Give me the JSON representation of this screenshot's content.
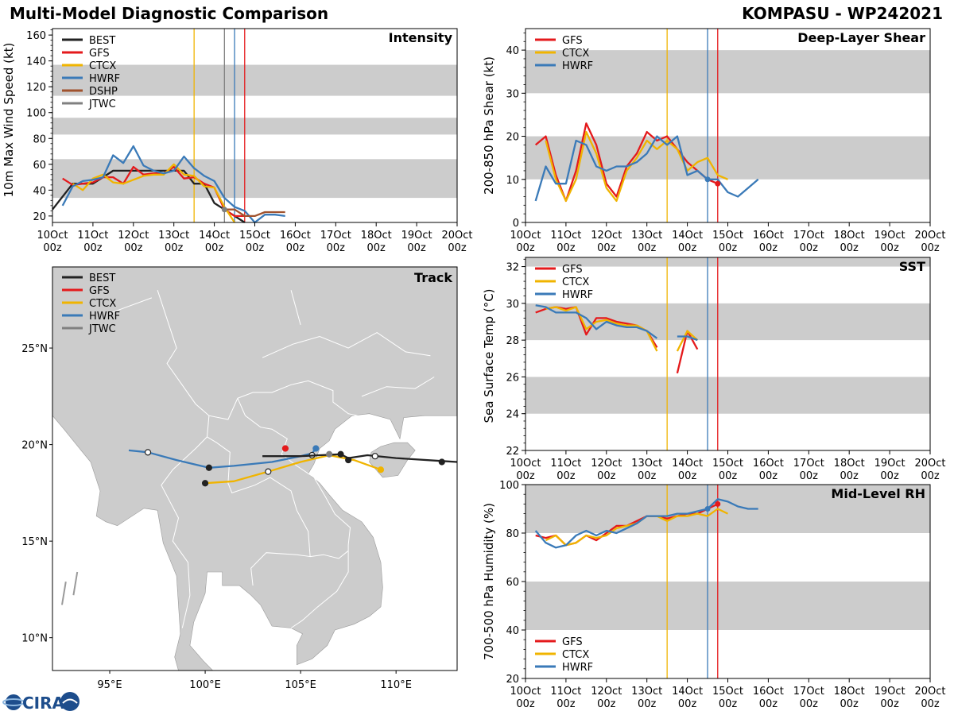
{
  "header": {
    "left_title": "Multi-Model Diagnostic Comparison",
    "right_title": "KOMPASU - WP242021"
  },
  "logo": {
    "text": "CIRA"
  },
  "colors": {
    "BEST": "#222222",
    "GFS": "#e41a1c",
    "CTCX": "#f0b400",
    "HWRF": "#3a7ab8",
    "DSHP": "#a0522d",
    "JTWC": "#808080",
    "band": "#cccccc",
    "land": "#cccccc",
    "border": "#ffffff"
  },
  "time_axis": {
    "ticks": [
      0,
      1,
      2,
      3,
      4,
      5,
      6,
      7,
      8,
      9,
      10
    ],
    "labels_top": [
      "10Oct",
      "11Oct",
      "12Oct",
      "13Oct",
      "14Oct",
      "15Oct",
      "16Oct",
      "17Oct",
      "18Oct",
      "19Oct",
      "20Oct"
    ],
    "labels_bottom": [
      "00z",
      "00z",
      "00z",
      "00z",
      "00z",
      "00z",
      "00z",
      "00z",
      "00z",
      "00z",
      "00z"
    ],
    "vlines": [
      {
        "model": "CTCX",
        "t": 3.5
      },
      {
        "model": "JTWC",
        "t": 4.25
      },
      {
        "model": "HWRF",
        "t": 4.5
      },
      {
        "model": "GFS",
        "t": 4.75
      }
    ]
  },
  "chart_data": [
    {
      "id": "intensity",
      "type": "line",
      "title": "Intensity",
      "ylabel": "10m Max Wind Speed (kt)",
      "ylim": [
        15,
        165
      ],
      "yticks": [
        20,
        40,
        60,
        80,
        100,
        120,
        140,
        160
      ],
      "bands": [
        [
          34,
          64
        ],
        [
          83,
          96
        ],
        [
          113,
          137
        ]
      ],
      "legend": [
        "BEST",
        "GFS",
        "CTCX",
        "HWRF",
        "DSHP",
        "JTWC"
      ],
      "series": [
        {
          "name": "BEST",
          "x": [
            0,
            0.5,
            1,
            1.25,
            1.5,
            1.75,
            2,
            2.25,
            2.5,
            2.75,
            3,
            3.25,
            3.5,
            3.75,
            4,
            4.25,
            4.5,
            4.75
          ],
          "y": [
            25,
            45,
            45,
            50,
            55,
            55,
            55,
            55,
            55,
            55,
            55,
            55,
            45,
            45,
            30,
            25,
            20,
            15
          ]
        },
        {
          "name": "GFS",
          "x": [
            0.25,
            0.5,
            0.75,
            1,
            1.25,
            1.5,
            1.75,
            2,
            2.25,
            2.5,
            2.75,
            3,
            3.25,
            3.5,
            3.75,
            4,
            4.25,
            4.5,
            4.75
          ],
          "y": [
            49,
            44,
            45,
            46,
            50,
            50,
            45,
            58,
            52,
            53,
            53,
            58,
            49,
            50,
            45,
            42,
            25,
            20,
            20
          ]
        },
        {
          "name": "CTCX",
          "x": [
            0.5,
            0.75,
            1,
            1.25,
            1.5,
            1.75,
            2,
            2.25,
            2.5,
            2.75,
            3,
            3.25,
            3.5,
            3.75,
            4,
            4.25,
            4.5
          ],
          "y": [
            45,
            40,
            49,
            52,
            46,
            45,
            48,
            51,
            52,
            52,
            60,
            52,
            51,
            43,
            42,
            27,
            15
          ]
        },
        {
          "name": "HWRF",
          "x": [
            0.25,
            0.5,
            0.75,
            1,
            1.25,
            1.5,
            1.75,
            2,
            2.25,
            2.5,
            2.75,
            3,
            3.25,
            3.5,
            3.75,
            4,
            4.25,
            4.5,
            4.75,
            5,
            5.25,
            5.5,
            5.75
          ],
          "y": [
            28,
            43,
            47,
            48,
            50,
            67,
            61,
            74,
            59,
            55,
            53,
            55,
            66,
            57,
            51,
            47,
            34,
            27,
            24,
            15,
            21,
            21,
            20
          ]
        },
        {
          "name": "DSHP",
          "x": [
            4.25,
            4.5,
            4.75,
            5,
            5.25,
            5.5,
            5.75
          ],
          "y": [
            25,
            25,
            20,
            20,
            23,
            23,
            23
          ]
        }
      ]
    },
    {
      "id": "shear",
      "type": "line",
      "title": "Deep-Layer Shear",
      "ylabel": "200-850 hPa Shear (kt)",
      "ylim": [
        0,
        45
      ],
      "yticks": [
        0,
        10,
        20,
        30,
        40
      ],
      "bands": [
        [
          10,
          20
        ],
        [
          30,
          40
        ]
      ],
      "legend": [
        "GFS",
        "CTCX",
        "HWRF"
      ],
      "series": [
        {
          "name": "GFS",
          "x": [
            0.25,
            0.5,
            0.75,
            1,
            1.25,
            1.5,
            1.75,
            2,
            2.25,
            2.5,
            2.75,
            3,
            3.25,
            3.5,
            3.75,
            4,
            4.25,
            4.5,
            4.75
          ],
          "y": [
            18,
            20,
            11,
            5,
            12,
            23,
            18,
            9,
            6,
            13,
            16,
            21,
            19,
            20,
            17,
            14,
            12,
            10,
            9
          ]
        },
        {
          "name": "CTCX",
          "x": [
            0.5,
            0.75,
            1,
            1.25,
            1.5,
            1.75,
            2,
            2.25,
            2.5,
            2.75,
            3,
            3.25,
            3.5,
            3.75,
            4,
            4.25,
            4.5,
            4.75,
            5
          ],
          "y": [
            19,
            10,
            5,
            10,
            21,
            16,
            8,
            5,
            12,
            15,
            19,
            17,
            19,
            17,
            12,
            14,
            15,
            11,
            10
          ]
        },
        {
          "name": "HWRF",
          "x": [
            0.25,
            0.5,
            0.75,
            1,
            1.25,
            1.5,
            1.75,
            2,
            2.25,
            2.5,
            2.75,
            3,
            3.25,
            3.5,
            3.75,
            4,
            4.25,
            4.5,
            4.75,
            5,
            5.25,
            5.5,
            5.75
          ],
          "y": [
            5,
            13,
            9,
            9,
            19,
            18,
            13,
            12,
            13,
            13,
            14,
            16,
            20,
            18,
            20,
            11,
            12,
            10,
            10,
            7,
            6,
            8,
            10
          ]
        }
      ]
    },
    {
      "id": "sst",
      "type": "line",
      "title": "SST",
      "ylabel": "Sea Surface Temp (°C)",
      "ylim": [
        22,
        32.5
      ],
      "yticks": [
        22,
        24,
        26,
        28,
        30,
        32
      ],
      "bands": [
        [
          24,
          26
        ],
        [
          28,
          30
        ],
        [
          32,
          32.5
        ]
      ],
      "legend": [
        "GFS",
        "CTCX",
        "HWRF"
      ],
      "series": [
        {
          "name": "GFS",
          "x": [
            0.25,
            0.5,
            0.75,
            1,
            1.25,
            1.5,
            1.75,
            2,
            2.25,
            2.5,
            2.75,
            3,
            3.25
          ],
          "y": [
            29.5,
            29.7,
            29.8,
            29.7,
            29.8,
            28.3,
            29.2,
            29.2,
            29.0,
            28.9,
            28.8,
            28.5,
            27.6
          ]
        },
        {
          "name": "GFS",
          "x": [
            3.75,
            4,
            4.25
          ],
          "y": [
            26.2,
            28.5,
            27.5
          ]
        },
        {
          "name": "CTCX",
          "x": [
            0.5,
            0.75,
            1,
            1.25,
            1.5,
            1.75,
            2,
            2.25,
            2.5,
            2.75,
            3,
            3.25
          ],
          "y": [
            29.7,
            29.8,
            29.6,
            29.8,
            28.6,
            29.0,
            29.1,
            28.9,
            28.8,
            28.8,
            28.5,
            27.4
          ]
        },
        {
          "name": "CTCX",
          "x": [
            3.75,
            4,
            4.25
          ],
          "y": [
            27.4,
            28.5,
            28.0
          ]
        },
        {
          "name": "HWRF",
          "x": [
            0.25,
            0.5,
            0.75,
            1,
            1.25,
            1.5,
            1.75,
            2,
            2.25,
            2.5,
            2.75,
            3,
            3.25
          ],
          "y": [
            29.9,
            29.8,
            29.5,
            29.5,
            29.5,
            29.2,
            28.6,
            29.0,
            28.8,
            28.7,
            28.7,
            28.5,
            28.1
          ]
        },
        {
          "name": "HWRF",
          "x": [
            3.75,
            4,
            4.25
          ],
          "y": [
            28.2,
            28.2,
            28.0
          ]
        }
      ]
    },
    {
      "id": "rh",
      "type": "line",
      "title": "Mid-Level RH",
      "ylabel": "700-500 hPa Humidity (%)",
      "ylim": [
        20,
        100
      ],
      "yticks": [
        20,
        40,
        60,
        80,
        100
      ],
      "bands": [
        [
          40,
          60
        ],
        [
          80,
          100
        ]
      ],
      "legend": [
        "GFS",
        "CTCX",
        "HWRF"
      ],
      "series": [
        {
          "name": "GFS",
          "x": [
            0.25,
            0.5,
            0.75,
            1,
            1.25,
            1.5,
            1.75,
            2,
            2.25,
            2.5,
            2.75,
            3,
            3.25,
            3.5,
            3.75,
            4,
            4.25,
            4.5,
            4.75
          ],
          "y": [
            79,
            78,
            79,
            75,
            76,
            79,
            77,
            80,
            83,
            83,
            85,
            87,
            87,
            86,
            87,
            88,
            88,
            90,
            92
          ]
        },
        {
          "name": "CTCX",
          "x": [
            0.5,
            0.75,
            1,
            1.25,
            1.5,
            1.75,
            2,
            2.25,
            2.5,
            2.75,
            3,
            3.25,
            3.5,
            3.75,
            4,
            4.25,
            4.5,
            4.75,
            5
          ],
          "y": [
            77,
            79,
            75,
            76,
            79,
            78,
            79,
            82,
            83,
            84,
            87,
            87,
            85,
            87,
            87,
            88,
            87,
            90,
            88
          ]
        },
        {
          "name": "HWRF",
          "x": [
            0.25,
            0.5,
            0.75,
            1,
            1.25,
            1.5,
            1.75,
            2,
            2.25,
            2.5,
            2.75,
            3,
            3.25,
            3.5,
            3.75,
            4,
            4.25,
            4.5,
            4.75,
            5,
            5.25,
            5.5,
            5.75
          ],
          "y": [
            81,
            76,
            74,
            75,
            79,
            81,
            79,
            81,
            80,
            82,
            84,
            87,
            87,
            87,
            88,
            88,
            89,
            90,
            94,
            93,
            91,
            90,
            90
          ]
        }
      ]
    },
    {
      "id": "track",
      "type": "scatter",
      "title": "Track",
      "xlim": [
        92,
        113.2
      ],
      "ylim": [
        8.3,
        29.2
      ],
      "xticks": [
        95,
        100,
        105,
        110
      ],
      "xticklabels": [
        "95°E",
        "100°E",
        "105°E",
        "110°E"
      ],
      "yticks": [
        10,
        15,
        20,
        25
      ],
      "yticklabels": [
        "10°N",
        "15°N",
        "20°N",
        "25°N"
      ],
      "legend": [
        "BEST",
        "GFS",
        "CTCX",
        "HWRF",
        "JTWC"
      ],
      "series": [
        {
          "name": "BEST",
          "lon": [
            103,
            104,
            105,
            106,
            107.1,
            107.5,
            108.5,
            110,
            112.4,
            113.2
          ],
          "lat": [
            19.4,
            19.4,
            19.4,
            19.45,
            19.5,
            19.3,
            19.45,
            19.3,
            19.15,
            19.1
          ],
          "markers": [
            {
              "lon": 107.1,
              "lat": 19.5,
              "fill": "dark"
            },
            {
              "lon": 107.5,
              "lat": 19.2,
              "fill": "dark"
            },
            {
              "lon": 108.9,
              "lat": 19.4,
              "fill": "open"
            },
            {
              "lon": 112.4,
              "lat": 19.1,
              "fill": "dark"
            }
          ]
        },
        {
          "name": "GFS",
          "lon": [
            104.2
          ],
          "lat": [
            19.8
          ],
          "markers": [
            {
              "lon": 104.2,
              "lat": 19.8,
              "fill": "color"
            }
          ]
        },
        {
          "name": "CTCX",
          "lon": [
            100,
            101.5,
            103.3,
            105,
            106.5,
            107.8,
            109.2
          ],
          "lat": [
            18.0,
            18.1,
            18.6,
            19.1,
            19.45,
            19.2,
            18.7
          ],
          "markers": [
            {
              "lon": 100,
              "lat": 18.0,
              "fill": "dark"
            },
            {
              "lon": 103.3,
              "lat": 18.6,
              "fill": "open"
            },
            {
              "lon": 109.2,
              "lat": 18.7,
              "fill": "color"
            }
          ]
        },
        {
          "name": "HWRF",
          "lon": [
            96,
            97,
            98.5,
            100.2,
            101.5,
            103.5,
            105,
            105.6,
            105.8
          ],
          "lat": [
            19.7,
            19.6,
            19.2,
            18.8,
            18.9,
            19.1,
            19.4,
            19.55,
            19.8
          ],
          "markers": [
            {
              "lon": 97,
              "lat": 19.6,
              "fill": "open"
            },
            {
              "lon": 100.2,
              "lat": 18.8,
              "fill": "dark"
            },
            {
              "lon": 105.6,
              "lat": 19.45,
              "fill": "open"
            },
            {
              "lon": 105.8,
              "lat": 19.8,
              "fill": "color"
            }
          ]
        },
        {
          "name": "JTWC",
          "lon": [
            106.5
          ],
          "lat": [
            19.5
          ],
          "markers": [
            {
              "lon": 106.5,
              "lat": 19.5,
              "fill": "color"
            }
          ]
        }
      ]
    }
  ]
}
